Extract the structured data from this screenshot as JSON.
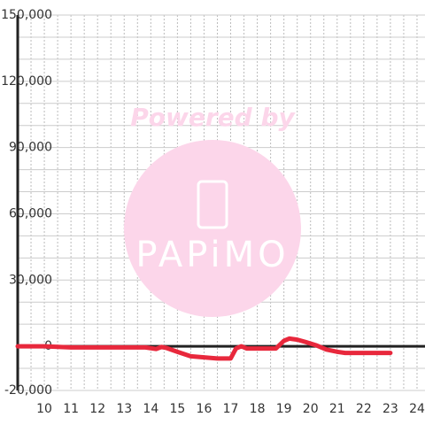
{
  "chart_data": {
    "type": "line",
    "watermark": "Powered by",
    "logo_text": "PAPiMO",
    "x": [
      9,
      10,
      11,
      12,
      13,
      13.8,
      14.2,
      14.4,
      14.6,
      15,
      15.5,
      16,
      16.5,
      17,
      17.2,
      17.4,
      17.6,
      18,
      18.7,
      19,
      19.2,
      19.5,
      19.8,
      20.2,
      20.6,
      21,
      21.3,
      22,
      23
    ],
    "series": [
      {
        "color": "#e8283c",
        "values": [
          0,
          0,
          -500,
          -500,
          -500,
          -500,
          -1200,
          -300,
          -800,
          -2500,
          -4500,
          -5000,
          -5500,
          -5500,
          -1000,
          0,
          -1000,
          -1000,
          -1000,
          2500,
          3500,
          3000,
          2000,
          500,
          -1500,
          -2500,
          -3000,
          -3000,
          -3000
        ]
      }
    ],
    "xlim": [
      9,
      24.3
    ],
    "ylim": [
      -20000,
      150000
    ],
    "xticks": [
      10,
      11,
      12,
      13,
      14,
      15,
      16,
      17,
      18,
      19,
      20,
      21,
      22,
      23,
      24
    ],
    "yticks": [
      {
        "value": -20000,
        "label": "-20,000"
      },
      0,
      {
        "value": 30000,
        "label": "30,000"
      },
      {
        "value": 60000,
        "label": "60,000"
      },
      {
        "value": 90000,
        "label": "90,000"
      },
      {
        "value": 120000,
        "label": "120,000"
      },
      {
        "value": 150000,
        "label": "150,000"
      }
    ],
    "minor_yticks": [
      -10000,
      10000,
      20000,
      40000,
      50000,
      70000,
      80000,
      100000,
      110000,
      130000,
      140000
    ],
    "minor_xticks": [
      9.5,
      10.5,
      11.5,
      12.5,
      13.5,
      14.5,
      15.5,
      16.5,
      17.5,
      18.5,
      19.5,
      20.5,
      21.5,
      22.5,
      23.5
    ],
    "grid": true
  }
}
